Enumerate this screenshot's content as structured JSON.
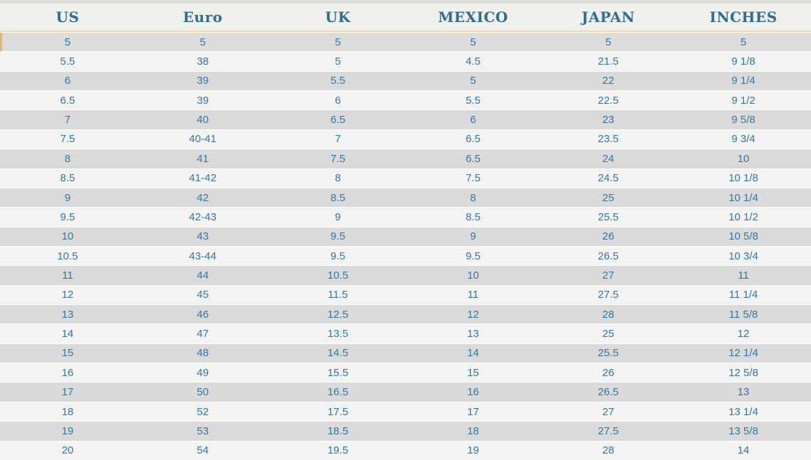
{
  "colors": {
    "header_text": "#2d6d96",
    "cell_text": "#3377a3",
    "row_dark": "#d9dad9",
    "row_light": "#f3f3f2",
    "header_bg": "#f0efea",
    "accent_line": "#e9dca4",
    "top_strip": "#dddddc",
    "first_row_accent": "#dd9440"
  },
  "chart_data": {
    "type": "table",
    "columns": [
      "US",
      "Euro",
      "UK",
      "MEXICO",
      "JAPAN",
      "INCHES"
    ],
    "rows": [
      [
        "5",
        "5",
        "5",
        "5",
        "5",
        "5"
      ],
      [
        "5.5",
        "38",
        "5",
        "4.5",
        "21.5",
        "9 1/8"
      ],
      [
        "6",
        "39",
        "5.5",
        "5",
        "22",
        "9 1/4"
      ],
      [
        "6.5",
        "39",
        "6",
        "5.5",
        "22.5",
        "9 1/2"
      ],
      [
        "7",
        "40",
        "6.5",
        "6",
        "23",
        "9 5/8"
      ],
      [
        "7.5",
        "40-41",
        "7",
        "6.5",
        "23.5",
        "9 3/4"
      ],
      [
        "8",
        "41",
        "7.5",
        "6.5",
        "24",
        "10"
      ],
      [
        "8.5",
        "41-42",
        "8",
        "7.5",
        "24.5",
        "10 1/8"
      ],
      [
        "9",
        "42",
        "8.5",
        "8",
        "25",
        "10 1/4"
      ],
      [
        "9.5",
        "42-43",
        "9",
        "8.5",
        "25.5",
        "10 1/2"
      ],
      [
        "10",
        "43",
        "9.5",
        "9",
        "26",
        "10 5/8"
      ],
      [
        "10.5",
        "43-44",
        "9.5",
        "9.5",
        "26.5",
        "10 3/4"
      ],
      [
        "11",
        "44",
        "10.5",
        "10",
        "27",
        "11"
      ],
      [
        "12",
        "45",
        "11.5",
        "11",
        "27.5",
        "11 1/4"
      ],
      [
        "13",
        "46",
        "12.5",
        "12",
        "28",
        "11 5/8"
      ],
      [
        "14",
        "47",
        "13.5",
        "13",
        "25",
        "12"
      ],
      [
        "15",
        "48",
        "14.5",
        "14",
        "25.5",
        "12 1/4"
      ],
      [
        "16",
        "49",
        "15.5",
        "15",
        "26",
        "12 5/8"
      ],
      [
        "17",
        "50",
        "16.5",
        "16",
        "26.5",
        "13"
      ],
      [
        "18",
        "52",
        "17.5",
        "17",
        "27",
        "13 1/4"
      ],
      [
        "19",
        "53",
        "18.5",
        "18",
        "27.5",
        "13 5/8"
      ],
      [
        "20",
        "54",
        "19.5",
        "19",
        "28",
        "14"
      ]
    ]
  }
}
